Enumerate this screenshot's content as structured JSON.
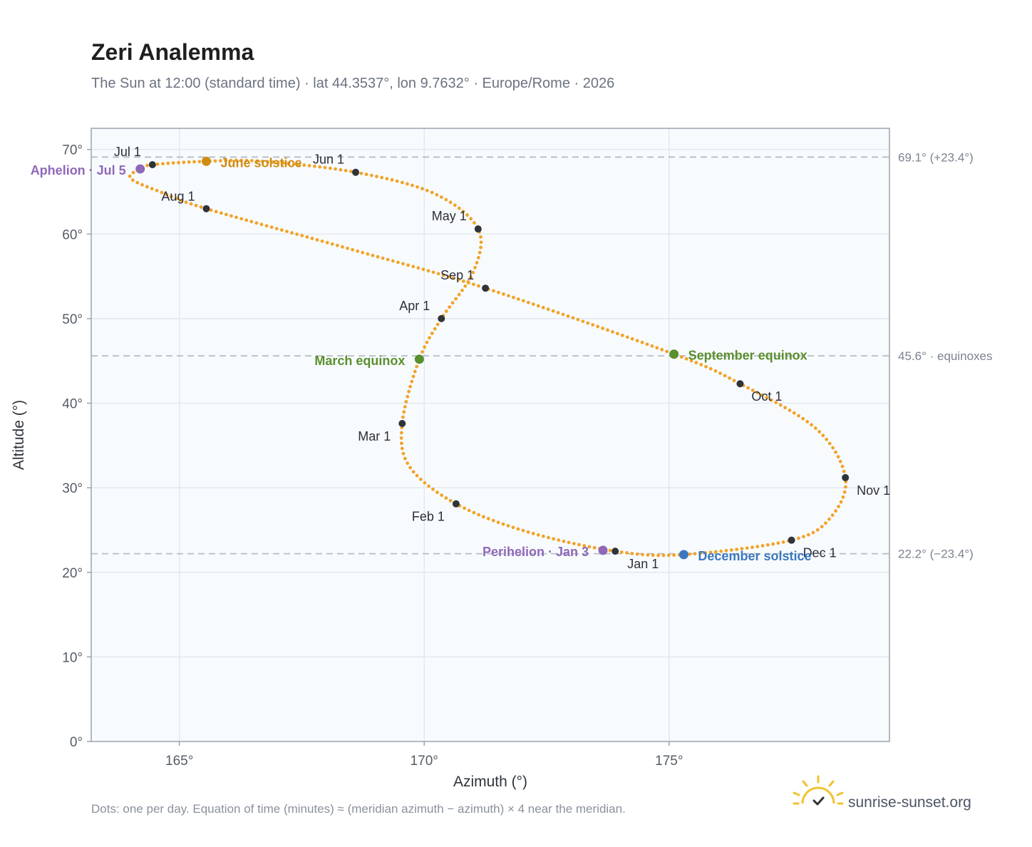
{
  "header": {
    "title": "Zeri Analemma",
    "subtitle": "The Sun at 12:00 (standard time) · lat 44.3537°, lon 9.7632° · Europe/Rome · 2026"
  },
  "footer": {
    "note": "Dots: one per day. Equation of time (minutes) ≈ (meridian azimuth − azimuth) × 4 near the meridian.",
    "brand": "sunrise-sunset.org"
  },
  "colors": {
    "curve": "#f2a32a",
    "month_marker": "#2f343b",
    "june_solstice": "#cf8c14",
    "equinox": "#5a8f2e",
    "december_solstice": "#3b78c0",
    "apsis": "#8f68b8",
    "grid": "#e3e8ee",
    "plot_bg": "#f8fbfd",
    "frame": "#9aa3ae",
    "reference_line": "#b5bdc5"
  },
  "chart_data": {
    "type": "scatter",
    "xlabel": "Azimuth (°)",
    "ylabel": "Altitude (°)",
    "xlim": [
      163.2,
      179.5
    ],
    "ylim": [
      0,
      72.5
    ],
    "x_ticks": [
      165,
      170,
      175
    ],
    "x_tick_labels": [
      "165°",
      "170°",
      "175°"
    ],
    "y_ticks": [
      0,
      10,
      20,
      30,
      40,
      50,
      60,
      70
    ],
    "y_tick_labels": [
      "0°",
      "10°",
      "20°",
      "30°",
      "40°",
      "50°",
      "60°",
      "70°"
    ],
    "grid": true,
    "reference_lines": [
      {
        "y": 69.1,
        "label": "69.1° (+23.4°)"
      },
      {
        "y": 45.6,
        "label": "45.6° · equinoxes"
      },
      {
        "y": 22.2,
        "label": "22.2° (−23.4°)"
      }
    ],
    "month_markers": [
      {
        "label": "Jan 1",
        "x": 173.9,
        "y": 22.5
      },
      {
        "label": "Feb 1",
        "x": 170.65,
        "y": 28.1
      },
      {
        "label": "Mar 1",
        "x": 169.55,
        "y": 37.6
      },
      {
        "label": "Apr 1",
        "x": 170.35,
        "y": 50.0
      },
      {
        "label": "May 1",
        "x": 171.1,
        "y": 60.6
      },
      {
        "label": "Jun 1",
        "x": 168.6,
        "y": 67.3
      },
      {
        "label": "Jul 1",
        "x": 164.45,
        "y": 68.2
      },
      {
        "label": "Aug 1",
        "x": 165.55,
        "y": 63.0
      },
      {
        "label": "Sep 1",
        "x": 171.25,
        "y": 53.6
      },
      {
        "label": "Oct 1",
        "x": 176.45,
        "y": 42.3
      },
      {
        "label": "Nov 1",
        "x": 178.6,
        "y": 31.2
      },
      {
        "label": "Dec 1",
        "x": 177.5,
        "y": 23.8
      }
    ],
    "events": [
      {
        "label": "June solstice",
        "x": 165.55,
        "y": 68.6,
        "color_key": "june_solstice"
      },
      {
        "label": "March equinox",
        "x": 169.9,
        "y": 45.2,
        "color_key": "equinox"
      },
      {
        "label": "September equinox",
        "x": 175.1,
        "y": 45.8,
        "color_key": "equinox"
      },
      {
        "label": "December solstice",
        "x": 175.3,
        "y": 22.1,
        "color_key": "december_solstice"
      },
      {
        "label": "Aphelion · Jul 5",
        "x": 164.2,
        "y": 67.7,
        "color_key": "apsis"
      },
      {
        "label": "Perihelion · Jan 3",
        "x": 173.65,
        "y": 22.6,
        "color_key": "apsis"
      }
    ],
    "curve_anchors": [
      [
        173.9,
        22.5
      ],
      [
        172.1,
        24.8
      ],
      [
        170.65,
        28.1
      ],
      [
        169.7,
        32.5
      ],
      [
        169.55,
        37.6
      ],
      [
        169.9,
        45.2
      ],
      [
        170.35,
        50.0
      ],
      [
        171.0,
        55.5
      ],
      [
        171.1,
        60.6
      ],
      [
        170.2,
        64.8
      ],
      [
        168.6,
        67.3
      ],
      [
        166.7,
        68.6
      ],
      [
        165.55,
        68.6
      ],
      [
        164.45,
        68.2
      ],
      [
        164.2,
        67.7
      ],
      [
        164.0,
        66.6
      ],
      [
        164.6,
        65.0
      ],
      [
        165.55,
        63.0
      ],
      [
        168.5,
        58.2
      ],
      [
        171.25,
        53.6
      ],
      [
        175.1,
        45.8
      ],
      [
        176.45,
        42.3
      ],
      [
        178.0,
        37.0
      ],
      [
        178.6,
        31.2
      ],
      [
        178.3,
        26.5
      ],
      [
        177.5,
        23.8
      ],
      [
        175.3,
        22.1
      ],
      [
        173.9,
        22.5
      ]
    ]
  }
}
